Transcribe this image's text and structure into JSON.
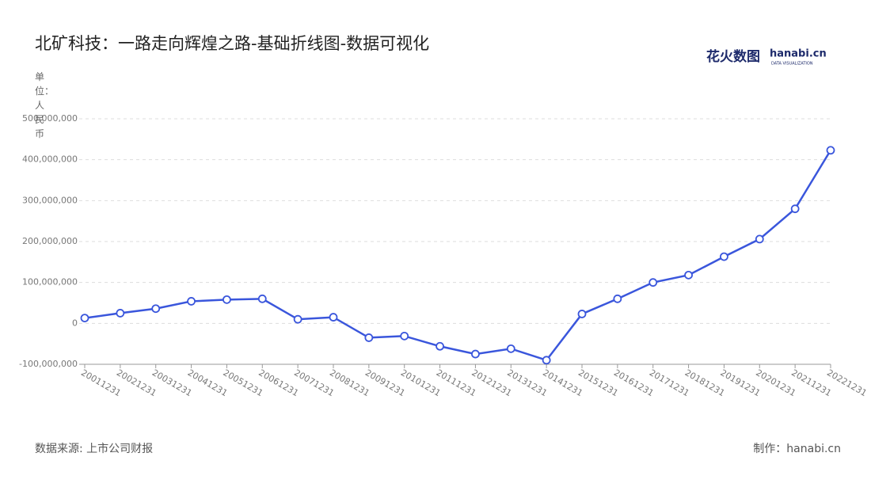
{
  "chart_data": {
    "type": "line",
    "title": "北矿科技：一路走向辉煌之路-基础折线图-数据可视化",
    "y_label": "单位：人民币",
    "logo": {
      "brand": "花火数图",
      "site": "hanabi.cn",
      "tagline": "DATA VISUALIZATION"
    },
    "source": "数据来源: 上市公司财报",
    "credit": "制作：hanabi.cn",
    "categories": [
      "20011231",
      "20021231",
      "20031231",
      "20041231",
      "20051231",
      "20061231",
      "20071231",
      "20081231",
      "20091231",
      "20101231",
      "20111231",
      "20121231",
      "20131231",
      "20141231",
      "20151231",
      "20161231",
      "20171231",
      "20181231",
      "20191231",
      "20201231",
      "20211231",
      "20221231"
    ],
    "series": [
      {
        "name": "北矿科技",
        "color": "#3a56dc",
        "values": [
          13000000,
          25000000,
          36000000,
          54000000,
          58000000,
          60000000,
          10000000,
          15000000,
          -35000000,
          -31000000,
          -56000000,
          -75000000,
          -62000000,
          -90000000,
          23000000,
          60000000,
          100000000,
          118000000,
          163000000,
          206000000,
          280000000,
          423000000
        ]
      }
    ],
    "ylim": [
      -100000000,
      500000000
    ],
    "yticks": [
      {
        "value": -100000000,
        "label": "-100,000,000"
      },
      0,
      {
        "value": 100000000,
        "label": "100,000,000"
      },
      {
        "value": 200000000,
        "label": "200,000,000"
      },
      {
        "value": 300000000,
        "label": "300,000,000"
      },
      {
        "value": 400000000,
        "label": "400,000,000"
      },
      {
        "value": 500000000,
        "label": "500,000,000"
      }
    ],
    "grid": true
  }
}
